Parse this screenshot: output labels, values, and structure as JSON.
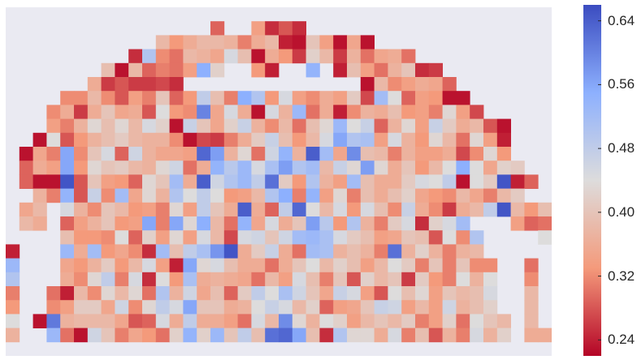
{
  "chart_data": {
    "type": "heatmap",
    "title": "",
    "xlabel": "",
    "ylabel": "",
    "n_rows": 25,
    "n_cols": 40,
    "colormap": "coolwarm_r",
    "vmin": 0.22,
    "vmax": 0.66,
    "colorbar_ticks": [
      0.24,
      0.32,
      0.4,
      0.48,
      0.56,
      0.64
    ],
    "colorbar_tick_labels": [
      "0.24",
      "0.32",
      "0.40",
      "0.48",
      "0.56",
      "0.64"
    ],
    "missing_color": "#eaeaf2",
    "background": "#ffffff",
    "note_missing": "cells with value null are blank (masked)",
    "values": [
      [
        null,
        null,
        null,
        null,
        null,
        null,
        null,
        null,
        null,
        null,
        null,
        null,
        null,
        null,
        null,
        null,
        null,
        null,
        null,
        null,
        null,
        null,
        null,
        null,
        null,
        null,
        null,
        null,
        null,
        null,
        null,
        null,
        null,
        null,
        null,
        null,
        null,
        null,
        null,
        null
      ],
      [
        null,
        null,
        null,
        null,
        null,
        null,
        null,
        null,
        null,
        null,
        null,
        null,
        null,
        null,
        null,
        0.29,
        null,
        null,
        0.34,
        0.25,
        0.28,
        0.25,
        null,
        null,
        null,
        null,
        null,
        null,
        null,
        null,
        null,
        null,
        null,
        null,
        null,
        null,
        null,
        null,
        null,
        null
      ],
      [
        null,
        null,
        null,
        null,
        null,
        null,
        null,
        null,
        null,
        null,
        null,
        0.38,
        0.33,
        0.36,
        0.38,
        0.38,
        0.37,
        0.31,
        0.36,
        0.38,
        0.24,
        0.23,
        0.4,
        0.34,
        0.23,
        0.35,
        0.23,
        null,
        null,
        null,
        null,
        null,
        null,
        null,
        null,
        null,
        null,
        null,
        null,
        null
      ],
      [
        null,
        null,
        null,
        null,
        null,
        null,
        null,
        null,
        null,
        0.25,
        0.5,
        0.32,
        0.3,
        0.38,
        0.37,
        0.35,
        0.45,
        0.39,
        0.23,
        0.36,
        0.33,
        0.26,
        0.42,
        0.38,
        0.26,
        0.37,
        0.3,
        0.35,
        0.36,
        0.3,
        null,
        null,
        null,
        null,
        null,
        null,
        null,
        null,
        null,
        null
      ],
      [
        null,
        null,
        null,
        null,
        null,
        null,
        null,
        0.39,
        0.23,
        0.38,
        0.29,
        0.31,
        0.3,
        0.34,
        0.55,
        0.42,
        null,
        null,
        0.33,
        0.24,
        null,
        null,
        0.54,
        null,
        0.24,
        0.39,
        0.34,
        0.3,
        0.37,
        0.4,
        0.25,
        0.26,
        null,
        null,
        null,
        null,
        null,
        null,
        null,
        null
      ],
      [
        null,
        null,
        null,
        null,
        null,
        null,
        0.36,
        0.26,
        0.28,
        0.26,
        0.26,
        0.27,
        0.25,
        null,
        null,
        null,
        null,
        null,
        null,
        null,
        null,
        null,
        null,
        null,
        null,
        null,
        0.23,
        0.38,
        0.32,
        0.34,
        0.36,
        0.35,
        0.29,
        null,
        null,
        null,
        null,
        null,
        null,
        null
      ],
      [
        null,
        null,
        null,
        null,
        0.32,
        0.32,
        0.38,
        0.32,
        0.28,
        0.34,
        0.31,
        0.4,
        0.29,
        0.33,
        0.48,
        0.39,
        0.31,
        0.55,
        0.5,
        0.33,
        0.45,
        0.34,
        0.32,
        0.36,
        0.34,
        0.41,
        0.27,
        0.52,
        0.44,
        0.29,
        0.34,
        0.33,
        0.23,
        0.23,
        null,
        null,
        null,
        null,
        null,
        null
      ],
      [
        null,
        null,
        null,
        0.32,
        0.36,
        0.26,
        0.36,
        0.4,
        0.35,
        0.36,
        0.28,
        0.44,
        0.33,
        0.32,
        0.6,
        0.35,
        0.45,
        0.36,
        0.23,
        0.45,
        0.37,
        0.53,
        0.3,
        0.36,
        0.24,
        0.32,
        0.37,
        0.36,
        0.39,
        0.33,
        0.34,
        0.31,
        0.43,
        0.34,
        0.27,
        null,
        null,
        null,
        null,
        null
      ],
      [
        null,
        null,
        null,
        0.34,
        0.31,
        0.37,
        0.43,
        0.39,
        0.43,
        0.38,
        0.45,
        0.42,
        0.23,
        0.47,
        0.4,
        0.35,
        0.42,
        0.47,
        0.37,
        0.32,
        0.38,
        0.3,
        0.39,
        0.43,
        0.53,
        0.44,
        0.47,
        0.29,
        0.37,
        0.43,
        0.34,
        0.47,
        0.41,
        0.36,
        0.38,
        0.28,
        0.23,
        null,
        null,
        null
      ],
      [
        null,
        null,
        0.23,
        0.44,
        0.28,
        0.33,
        0.37,
        0.39,
        0.41,
        0.38,
        0.37,
        0.37,
        0.32,
        0.23,
        0.27,
        0.26,
        0.31,
        0.36,
        0.41,
        0.47,
        0.39,
        0.33,
        0.38,
        0.45,
        0.56,
        0.5,
        0.51,
        0.34,
        0.45,
        0.37,
        0.33,
        0.43,
        0.38,
        0.3,
        0.43,
        0.34,
        0.24,
        null,
        null,
        null
      ],
      [
        null,
        0.23,
        0.35,
        0.31,
        0.56,
        0.32,
        0.4,
        0.45,
        0.29,
        0.46,
        0.37,
        0.35,
        0.35,
        0.34,
        0.63,
        0.57,
        0.37,
        0.43,
        0.3,
        0.46,
        0.54,
        0.37,
        0.64,
        0.52,
        0.35,
        0.59,
        0.39,
        0.38,
        0.31,
        0.37,
        0.34,
        0.34,
        0.36,
        0.27,
        0.32,
        0.43,
        0.33,
        null,
        null,
        null
      ],
      [
        null,
        0.29,
        0.36,
        0.34,
        0.56,
        0.33,
        0.43,
        0.4,
        0.41,
        0.38,
        0.37,
        0.43,
        0.46,
        0.3,
        0.36,
        0.54,
        0.49,
        0.53,
        0.45,
        0.51,
        0.57,
        0.5,
        0.52,
        0.38,
        0.47,
        0.43,
        0.57,
        0.43,
        0.36,
        0.4,
        0.33,
        0.38,
        0.44,
        0.55,
        0.44,
        0.35,
        0.42,
        0.41,
        null,
        null
      ],
      [
        null,
        0.29,
        0.23,
        0.23,
        0.65,
        0.28,
        0.4,
        0.34,
        0.33,
        0.29,
        0.43,
        0.4,
        0.52,
        0.36,
        0.64,
        0.46,
        0.5,
        0.53,
        0.48,
        0.62,
        0.41,
        0.33,
        0.5,
        0.37,
        0.34,
        0.52,
        0.39,
        0.36,
        0.36,
        0.41,
        0.45,
        0.44,
        0.48,
        0.23,
        0.44,
        0.41,
        0.65,
        0.24,
        0.29,
        null
      ],
      [
        null,
        null,
        0.37,
        0.31,
        0.54,
        0.28,
        0.47,
        0.32,
        0.52,
        0.35,
        0.43,
        0.37,
        0.5,
        0.44,
        0.48,
        0.44,
        0.33,
        0.34,
        0.38,
        0.5,
        0.55,
        0.31,
        0.54,
        0.34,
        0.43,
        0.31,
        0.39,
        0.36,
        0.39,
        0.42,
        0.35,
        0.33,
        0.32,
        0.38,
        0.35,
        0.31,
        0.38,
        0.41,
        null,
        null
      ],
      [
        null,
        0.35,
        0.38,
        null,
        0.45,
        0.37,
        0.32,
        0.4,
        0.38,
        0.33,
        0.34,
        0.31,
        0.43,
        0.34,
        0.48,
        0.4,
        0.36,
        0.64,
        0.36,
        0.29,
        0.48,
        0.63,
        0.44,
        0.38,
        0.45,
        0.33,
        0.45,
        0.39,
        0.32,
        0.47,
        0.36,
        0.32,
        0.26,
        0.36,
        0.38,
        0.48,
        0.65,
        0.38,
        0.33,
        0.39
      ],
      [
        null,
        0.38,
        0.36,
        null,
        0.29,
        0.34,
        0.37,
        0.4,
        0.33,
        0.34,
        0.56,
        0.31,
        0.56,
        0.43,
        0.55,
        0.38,
        0.3,
        0.54,
        0.35,
        0.45,
        0.36,
        0.4,
        0.57,
        0.49,
        0.33,
        0.5,
        0.37,
        0.31,
        0.41,
        0.45,
        0.25,
        0.42,
        0.45,
        0.52,
        null,
        null,
        null,
        0.34,
        0.29,
        0.3
      ],
      [
        null,
        null,
        null,
        null,
        0.39,
        0.33,
        0.33,
        0.32,
        0.44,
        0.29,
        0.42,
        0.34,
        0.43,
        0.34,
        0.45,
        0.38,
        0.27,
        0.45,
        0.46,
        0.4,
        0.46,
        0.52,
        0.53,
        0.51,
        0.45,
        0.41,
        0.39,
        0.34,
        0.35,
        0.4,
        0.39,
        0.28,
        0.44,
        0.32,
        0.5,
        null,
        null,
        null,
        null,
        0.44
      ],
      [
        0.24,
        null,
        null,
        null,
        0.53,
        0.36,
        0.52,
        0.33,
        0.35,
        0.32,
        0.25,
        0.52,
        0.39,
        0.48,
        0.51,
        0.58,
        0.65,
        0.36,
        0.41,
        0.47,
        0.36,
        0.3,
        0.52,
        0.51,
        0.37,
        0.39,
        0.37,
        0.31,
        0.62,
        0.37,
        0.42,
        0.37,
        0.31,
        0.37,
        0.38,
        null,
        null,
        null,
        null,
        null
      ],
      [
        0.53,
        null,
        null,
        null,
        0.35,
        0.33,
        0.37,
        0.41,
        0.33,
        0.38,
        0.45,
        0.34,
        0.24,
        0.56,
        0.43,
        0.45,
        0.39,
        0.36,
        0.36,
        0.3,
        0.36,
        0.4,
        0.44,
        0.38,
        0.42,
        0.39,
        0.34,
        0.38,
        0.44,
        0.41,
        0.31,
        0.4,
        0.31,
        0.4,
        0.32,
        0.32,
        null,
        null,
        0.3,
        null
      ],
      [
        0.5,
        null,
        null,
        null,
        0.36,
        0.32,
        0.43,
        0.48,
        0.31,
        0.45,
        0.25,
        0.44,
        0.33,
        0.51,
        0.36,
        0.37,
        0.36,
        0.35,
        0.3,
        0.38,
        0.34,
        0.45,
        0.39,
        0.31,
        0.4,
        0.28,
        0.42,
        0.38,
        0.4,
        0.26,
        0.41,
        0.33,
        0.31,
        0.44,
        0.37,
        0.44,
        null,
        null,
        0.32,
        null
      ],
      [
        0.31,
        null,
        null,
        0.3,
        0.24,
        0.38,
        0.32,
        0.43,
        0.38,
        0.43,
        0.3,
        0.5,
        0.37,
        0.46,
        0.35,
        0.39,
        0.29,
        0.41,
        0.48,
        0.44,
        0.51,
        0.46,
        0.4,
        0.35,
        0.47,
        0.45,
        0.34,
        0.28,
        0.44,
        0.39,
        0.43,
        0.34,
        0.4,
        0.38,
        0.39,
        0.45,
        null,
        null,
        0.38,
        null
      ],
      [
        0.33,
        null,
        null,
        0.32,
        0.34,
        0.41,
        0.41,
        0.35,
        0.46,
        0.32,
        0.43,
        0.48,
        0.45,
        0.56,
        0.4,
        0.4,
        0.36,
        0.37,
        0.44,
        0.47,
        0.45,
        0.38,
        0.42,
        0.29,
        0.34,
        0.35,
        0.4,
        0.47,
        0.46,
        0.34,
        0.38,
        0.34,
        0.46,
        0.37,
        0.39,
        0.42,
        null,
        null,
        0.38,
        null
      ],
      [
        0.44,
        null,
        0.23,
        0.61,
        0.37,
        0.38,
        0.38,
        0.38,
        0.35,
        0.28,
        0.29,
        0.45,
        0.36,
        0.48,
        0.36,
        0.36,
        0.34,
        0.3,
        0.45,
        0.38,
        0.59,
        0.43,
        0.37,
        0.44,
        0.42,
        0.34,
        0.38,
        0.4,
        0.38,
        0.41,
        0.31,
        0.34,
        0.42,
        0.3,
        0.44,
        0.4,
        0.38,
        null,
        0.38,
        null
      ],
      [
        0.37,
        null,
        null,
        0.53,
        0.3,
        0.23,
        0.46,
        0.4,
        0.31,
        0.35,
        0.33,
        0.3,
        0.42,
        0.54,
        0.42,
        0.53,
        0.4,
        0.48,
        0.39,
        0.62,
        0.63,
        0.56,
        0.39,
        0.25,
        0.5,
        0.43,
        0.43,
        0.36,
        0.45,
        0.31,
        0.39,
        0.28,
        0.37,
        0.31,
        0.45,
        0.37,
        0.42,
        null,
        0.36,
        0.36
      ],
      [
        null,
        null,
        null,
        null,
        null,
        null,
        null,
        null,
        null,
        null,
        null,
        null,
        null,
        null,
        null,
        null,
        null,
        null,
        null,
        null,
        null,
        null,
        null,
        null,
        null,
        null,
        null,
        null,
        null,
        null,
        null,
        null,
        null,
        null,
        null,
        null,
        null,
        null,
        null,
        null
      ]
    ]
  }
}
